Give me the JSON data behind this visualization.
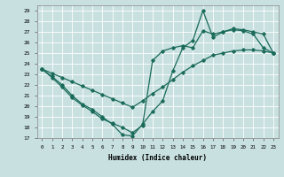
{
  "xlabel": "Humidex (Indice chaleur)",
  "xlim": [
    -0.5,
    23.5
  ],
  "ylim": [
    17,
    29.5
  ],
  "yticks": [
    17,
    18,
    19,
    20,
    21,
    22,
    23,
    24,
    25,
    26,
    27,
    28,
    29
  ],
  "xticks": [
    0,
    1,
    2,
    3,
    4,
    5,
    6,
    7,
    8,
    9,
    10,
    11,
    12,
    13,
    14,
    15,
    16,
    17,
    18,
    19,
    20,
    21,
    22,
    23
  ],
  "background_color": "#c8e0e0",
  "line_color": "#1a6b5a",
  "grid_color": "#ffffff",
  "line1_x": [
    0,
    1,
    2,
    3,
    4,
    5,
    6,
    7,
    8,
    9,
    10,
    11,
    12,
    13,
    14,
    15,
    16,
    17,
    18,
    19,
    20,
    21,
    22,
    23
  ],
  "line1_y": [
    23.5,
    22.8,
    22.0,
    21.0,
    20.2,
    19.7,
    19.0,
    18.3,
    17.3,
    17.2,
    18.3,
    19.5,
    20.5,
    23.3,
    25.5,
    26.2,
    29.0,
    26.5,
    27.0,
    27.3,
    27.2,
    27.0,
    26.8,
    25.0
  ],
  "line2_x": [
    0,
    1,
    2,
    3,
    4,
    5,
    6,
    7,
    8,
    9,
    10,
    11,
    12,
    13,
    14,
    15,
    16,
    17,
    18,
    19,
    20,
    21,
    22,
    23
  ],
  "line2_y": [
    23.5,
    22.7,
    21.8,
    20.8,
    20.1,
    19.5,
    18.8,
    18.4,
    18.0,
    17.5,
    18.2,
    24.3,
    25.2,
    25.5,
    25.7,
    25.5,
    27.1,
    26.8,
    27.0,
    27.2,
    27.1,
    26.8,
    25.5,
    25.0
  ],
  "line3_x": [
    0,
    1,
    2,
    3,
    4,
    5,
    6,
    7,
    8,
    9,
    10,
    11,
    12,
    13,
    14,
    15,
    16,
    17,
    18,
    19,
    20,
    21,
    22,
    23
  ],
  "line3_y": [
    23.5,
    23.1,
    22.7,
    22.3,
    21.9,
    21.5,
    21.1,
    20.7,
    20.3,
    19.9,
    20.5,
    21.2,
    21.8,
    22.5,
    23.2,
    23.8,
    24.3,
    24.8,
    25.0,
    25.2,
    25.3,
    25.3,
    25.2,
    25.0
  ]
}
